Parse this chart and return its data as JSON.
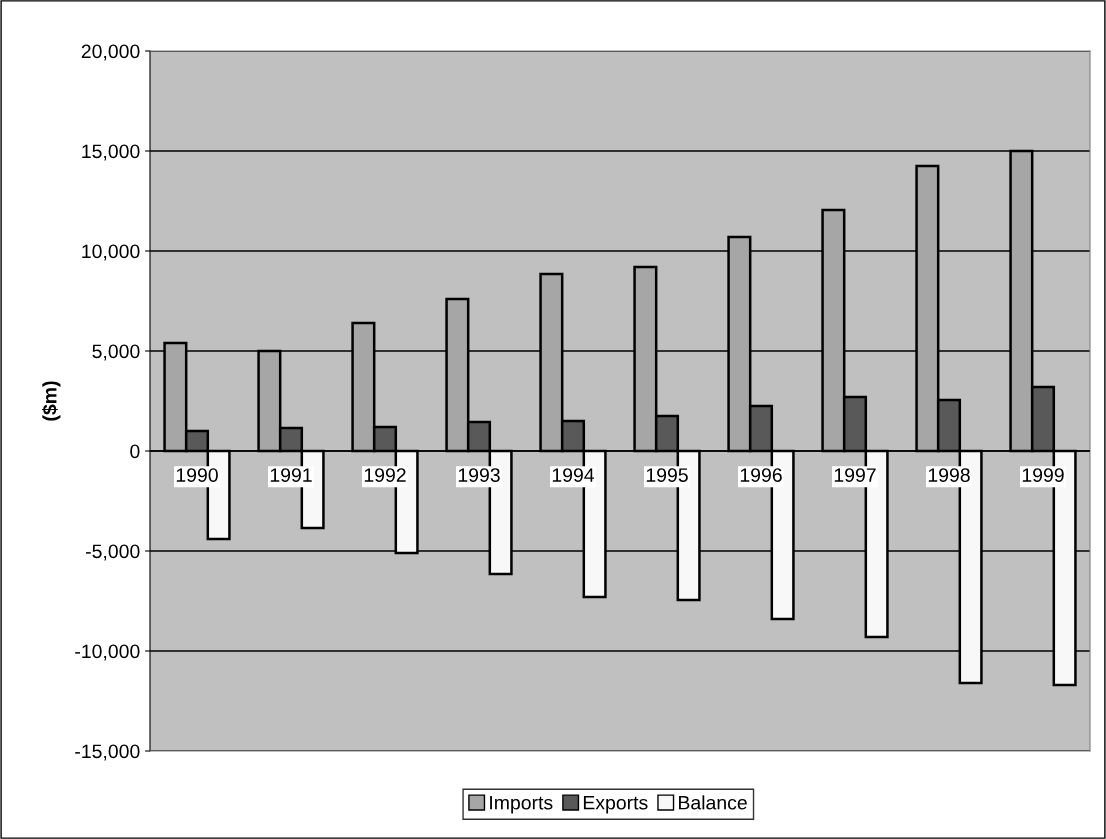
{
  "chart_data": {
    "type": "bar",
    "ylabel": "($m)",
    "categories": [
      "1990",
      "1991",
      "1992",
      "1993",
      "1994",
      "1995",
      "1996",
      "1997",
      "1998",
      "1999"
    ],
    "series": [
      {
        "name": "Imports",
        "color": "#a6a6a6",
        "values": [
          5400,
          5000,
          6400,
          7600,
          8850,
          9200,
          10700,
          12050,
          14250,
          15000
        ]
      },
      {
        "name": "Exports",
        "color": "#595959",
        "values": [
          1000,
          1150,
          1200,
          1450,
          1500,
          1750,
          2250,
          2700,
          2550,
          3200
        ]
      },
      {
        "name": "Balance",
        "color": "#f8f8f8",
        "values": [
          -4400,
          -3850,
          -5100,
          -6150,
          -7300,
          -7450,
          -8400,
          -9300,
          -11600,
          -11700
        ]
      }
    ],
    "ylim": [
      -15000,
      20000
    ],
    "yticks": [
      {
        "value": -15000,
        "label": "-15,000"
      },
      {
        "value": -10000,
        "label": "-10,000"
      },
      {
        "value": -5000,
        "label": "-5,000"
      },
      0,
      {
        "value": 5000,
        "label": "5,000"
      },
      {
        "value": 10000,
        "label": "10,000"
      },
      {
        "value": 15000,
        "label": "15,000"
      },
      {
        "value": 20000,
        "label": "20,000"
      }
    ],
    "grid": "y",
    "legend": "bottom"
  }
}
